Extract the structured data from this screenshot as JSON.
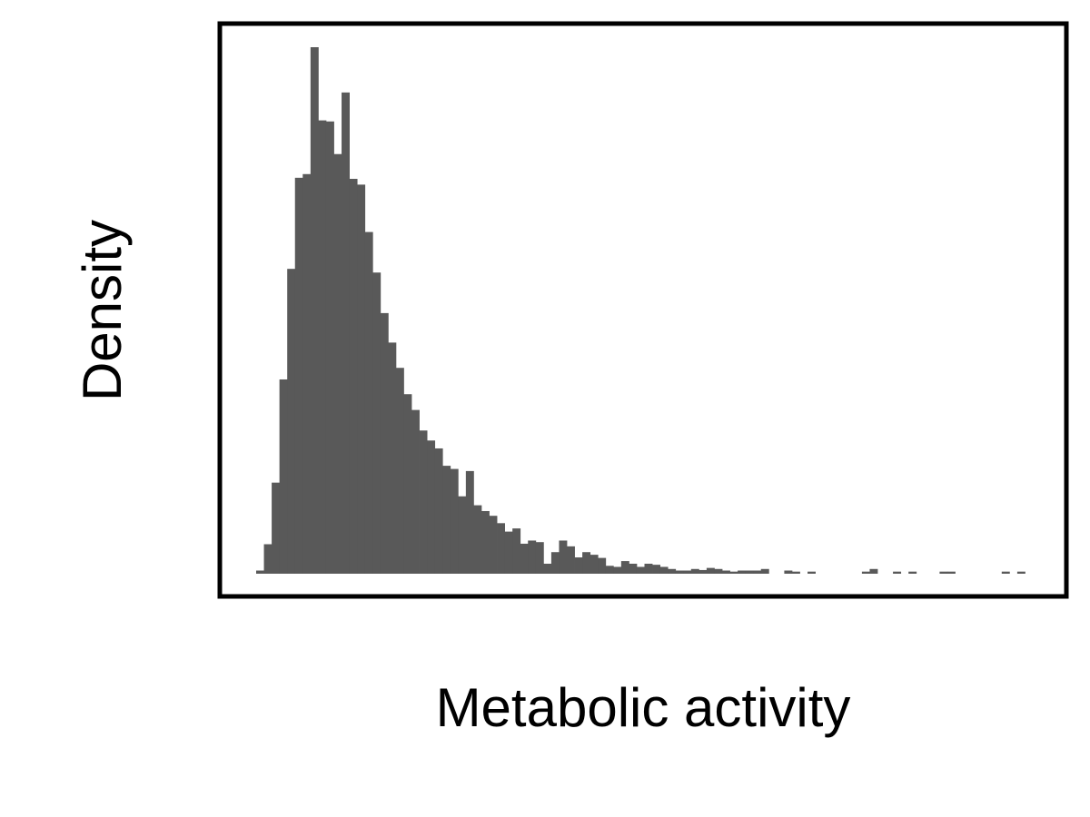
{
  "chart_data": {
    "type": "bar",
    "xlabel": "Metabolic activity",
    "ylabel": "Density",
    "x_ticks_shown": false,
    "y_ticks_shown": false,
    "grid": false,
    "legend": "none",
    "bar_color": "#595959",
    "frame_color": "#000000",
    "bin_count": 100,
    "ylim": [
      0,
      100
    ],
    "values": [
      0.6,
      5.6,
      17.3,
      36.9,
      57.9,
      75.2,
      75.9,
      100,
      86.1,
      85.9,
      79.7,
      91.4,
      75.0,
      73.9,
      64.9,
      57.2,
      49.5,
      43.9,
      39.1,
      34.1,
      31.1,
      27.2,
      25.3,
      23.8,
      20.5,
      19.9,
      14.7,
      19.5,
      13.0,
      11.9,
      11.0,
      9.6,
      8.0,
      8.6,
      5.7,
      6.3,
      6.0,
      1.9,
      4.1,
      6.3,
      5.2,
      3.1,
      4.1,
      3.6,
      3.0,
      1.5,
      1.3,
      2.4,
      1.9,
      1.3,
      1.9,
      1.7,
      1.3,
      0.9,
      0.6,
      0.6,
      0.9,
      0.7,
      1.1,
      0.9,
      0.6,
      0.4,
      0.6,
      0.6,
      0.6,
      0.9,
      0,
      0,
      0.6,
      0.4,
      0,
      0.4,
      0,
      0,
      0,
      0,
      0,
      0,
      0.4,
      0.9,
      0,
      0,
      0.4,
      0,
      0.4,
      0,
      0,
      0,
      0.4,
      0.4,
      0,
      0,
      0,
      0,
      0,
      0,
      0.4,
      0,
      0.4,
      0
    ]
  }
}
